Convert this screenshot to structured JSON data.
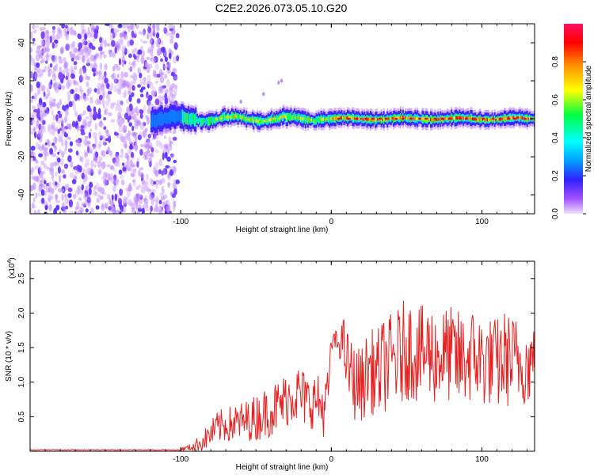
{
  "figure_title": "C2E2.2026.073.05.10.G20",
  "colors": {
    "line": "#e8201f",
    "frame": "#000000",
    "background": "#ffffff"
  },
  "chart_data": [
    {
      "type": "heatmap",
      "title": "C2E2.2026.073.05.10.G20",
      "xlabel": "Height of straight line (km)",
      "ylabel": "Frequency (Hz)",
      "xlim": [
        -200,
        135
      ],
      "ylim": [
        -50,
        50
      ],
      "x_ticks": [
        "-100",
        "0",
        "100"
      ],
      "y_ticks": [
        "40",
        "20",
        "0",
        "-20",
        "-40"
      ],
      "grid": false,
      "colorbar": {
        "label": "Normalized spectral amplitude",
        "range": [
          0,
          1
        ],
        "ticks": [
          "0.0",
          "0.2",
          "0.4",
          "0.6",
          "0.8"
        ]
      },
      "features": [
        {
          "name": "broadband noise region",
          "x_range": [
            -200,
            -102
          ],
          "y_range": [
            -50,
            50
          ],
          "amplitude": 0.15
        },
        {
          "name": "signal band centered at 0 Hz",
          "x_range": [
            -120,
            135
          ],
          "y_center": 0,
          "y_halfwidth": 3,
          "peak_amplitude": 0.95
        },
        {
          "name": "spurious dots",
          "points": [
            [
              -35,
              19
            ],
            [
              -33,
              20
            ],
            [
              -45,
              13
            ],
            [
              -60,
              9
            ]
          ]
        }
      ]
    },
    {
      "type": "line",
      "xlabel": "Height of straight line (km)",
      "ylabel": "SNR (10 * v/v)",
      "y_multiplier_label": "(x10",
      "y_multiplier_exp": "4",
      "y_multiplier_suffix": ")",
      "xlim": [
        -200,
        135
      ],
      "ylim": [
        0,
        2.75
      ],
      "x_ticks": [
        "-100",
        "0",
        "100"
      ],
      "y_ticks": [
        "0.5",
        "1.0",
        "1.5",
        "2.0",
        "2.5"
      ],
      "grid": false,
      "series": [
        {
          "name": "SNR",
          "color": "#e8201f",
          "x": [
            -200,
            -190,
            -180,
            -170,
            -160,
            -150,
            -140,
            -130,
            -120,
            -110,
            -100,
            -95,
            -90,
            -85,
            -80,
            -75,
            -70,
            -65,
            -60,
            -55,
            -50,
            -45,
            -40,
            -35,
            -30,
            -25,
            -20,
            -15,
            -10,
            -5,
            -2,
            0,
            2,
            5,
            8,
            10,
            15,
            20,
            25,
            30,
            35,
            40,
            45,
            50,
            55,
            60,
            65,
            70,
            75,
            80,
            85,
            90,
            95,
            100,
            105,
            110,
            115,
            120,
            125,
            130,
            135
          ],
          "y": [
            0.02,
            0.02,
            0.02,
            0.02,
            0.02,
            0.02,
            0.02,
            0.02,
            0.02,
            0.02,
            0.03,
            0.05,
            0.08,
            0.15,
            0.25,
            0.35,
            0.38,
            0.4,
            0.42,
            0.45,
            0.48,
            0.55,
            0.6,
            0.65,
            0.75,
            0.85,
            0.8,
            0.7,
            0.75,
            0.6,
            0.9,
            1.55,
            1.6,
            1.55,
            1.6,
            1.3,
            1.0,
            0.95,
            1.2,
            1.1,
            1.25,
            1.3,
            1.35,
            1.5,
            1.45,
            1.4,
            1.45,
            1.35,
            1.4,
            1.4,
            1.3,
            1.35,
            1.4,
            1.3,
            1.3,
            1.25,
            1.35,
            1.3,
            1.3,
            1.25,
            1.3
          ],
          "noise_amplitude": [
            0.0,
            0.0,
            0.0,
            0.0,
            0.0,
            0.0,
            0.0,
            0.0,
            0.0,
            0.0,
            0.02,
            0.04,
            0.1,
            0.15,
            0.2,
            0.25,
            0.25,
            0.28,
            0.3,
            0.3,
            0.35,
            0.35,
            0.4,
            0.4,
            0.4,
            0.45,
            0.45,
            0.4,
            0.4,
            0.4,
            0.3,
            0.15,
            0.15,
            0.2,
            0.35,
            0.5,
            0.55,
            0.55,
            0.6,
            0.65,
            0.7,
            0.7,
            0.75,
            0.75,
            0.75,
            0.7,
            0.75,
            0.7,
            0.7,
            0.7,
            0.75,
            0.7,
            0.7,
            0.7,
            0.65,
            0.7,
            0.7,
            0.7,
            0.65,
            0.6,
            0.6
          ]
        }
      ]
    }
  ]
}
